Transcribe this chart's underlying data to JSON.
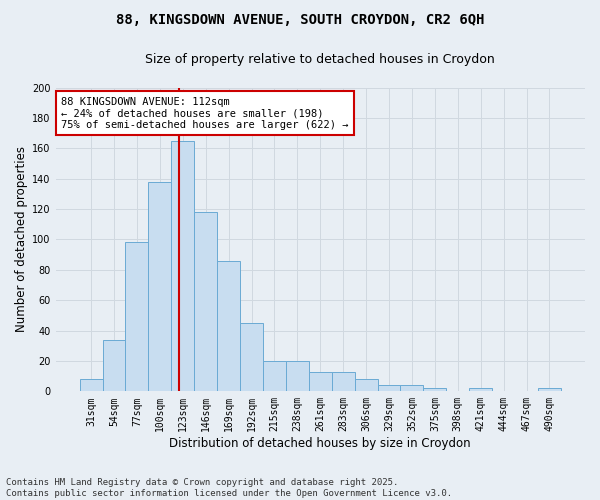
{
  "title1": "88, KINGSDOWN AVENUE, SOUTH CROYDON, CR2 6QH",
  "title2": "Size of property relative to detached houses in Croydon",
  "xlabel": "Distribution of detached houses by size in Croydon",
  "ylabel": "Number of detached properties",
  "categories": [
    "31sqm",
    "54sqm",
    "77sqm",
    "100sqm",
    "123sqm",
    "146sqm",
    "169sqm",
    "192sqm",
    "215sqm",
    "238sqm",
    "261sqm",
    "283sqm",
    "306sqm",
    "329sqm",
    "352sqm",
    "375sqm",
    "398sqm",
    "421sqm",
    "444sqm",
    "467sqm",
    "490sqm"
  ],
  "values": [
    8,
    34,
    98,
    138,
    165,
    118,
    86,
    45,
    20,
    20,
    13,
    13,
    8,
    4,
    4,
    2,
    0,
    2,
    0,
    0,
    2
  ],
  "bar_color": "#c8ddf0",
  "bar_edge_color": "#6aaad4",
  "vline_color": "#cc0000",
  "vline_pos": 3.83,
  "grid_color": "#d0d8e0",
  "annotation_text": "88 KINGSDOWN AVENUE: 112sqm\n← 24% of detached houses are smaller (198)\n75% of semi-detached houses are larger (622) →",
  "annotation_box_color": "#ffffff",
  "annotation_box_edge": "#cc0000",
  "footer": "Contains HM Land Registry data © Crown copyright and database right 2025.\nContains public sector information licensed under the Open Government Licence v3.0.",
  "ylim": [
    0,
    200
  ],
  "yticks": [
    0,
    20,
    40,
    60,
    80,
    100,
    120,
    140,
    160,
    180,
    200
  ],
  "bg_color": "#e8eef4",
  "title_fontsize": 10,
  "subtitle_fontsize": 9,
  "axis_label_fontsize": 8.5,
  "tick_fontsize": 7,
  "annotation_fontsize": 7.5,
  "footer_fontsize": 6.5
}
